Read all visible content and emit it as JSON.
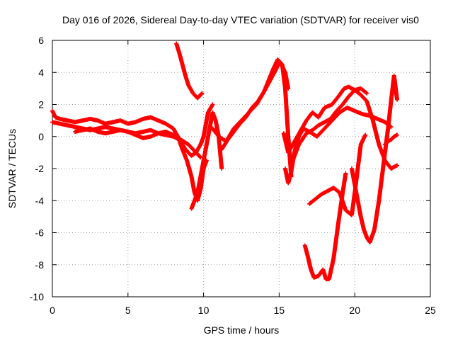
{
  "chart_data": {
    "type": "scatter",
    "title": "Day 016 of 2026, Sidereal Day-to-day VTEC variation (SDTVAR) for receiver vis0",
    "xlabel": "GPS time / hours",
    "ylabel": "SDTVAR / TECUs",
    "xlim": [
      0,
      25
    ],
    "ylim": [
      -10,
      6
    ],
    "xticks": [
      "0",
      "5",
      "10",
      "15",
      "20",
      "25"
    ],
    "yticks": [
      "-10",
      "-8",
      "-6",
      "-4",
      "-2",
      "0",
      "2",
      "4",
      "6"
    ],
    "grid": true,
    "marker": "plus",
    "color": "#ff0000",
    "series": [
      {
        "x": [
          0.0,
          0.2,
          0.5,
          1.0,
          1.5,
          2.0,
          2.5,
          3.0,
          3.5,
          4.0,
          4.5,
          5.0,
          5.5,
          6.0,
          6.5,
          7.0,
          7.5,
          8.0,
          8.3,
          8.6,
          8.9,
          9.2,
          9.4,
          9.6,
          9.8,
          10.0,
          10.2
        ],
        "y": [
          1.6,
          1.2,
          1.1,
          1.0,
          0.9,
          1.0,
          1.1,
          1.0,
          0.8,
          0.9,
          1.0,
          0.8,
          0.9,
          1.1,
          1.2,
          1.0,
          0.8,
          0.5,
          0.0,
          -0.8,
          -1.5,
          -2.5,
          -3.5,
          -4.0,
          -3.3,
          -2.0,
          -1.5
        ]
      },
      {
        "x": [
          0.0,
          0.5,
          1.0,
          1.5,
          2.0,
          2.5,
          3.0,
          3.5,
          4.0,
          4.5,
          5.0,
          5.5,
          6.0,
          6.5,
          7.0,
          7.5,
          8.0,
          8.4,
          8.8,
          9.2,
          9.5,
          9.8,
          10.0,
          10.3,
          10.6
        ],
        "y": [
          0.9,
          0.8,
          0.7,
          0.6,
          0.5,
          0.4,
          0.5,
          0.6,
          0.5,
          0.4,
          0.3,
          0.2,
          0.3,
          0.4,
          0.2,
          0.1,
          0.0,
          -0.2,
          -0.8,
          -1.2,
          -1.0,
          -0.5,
          0.0,
          1.5,
          2.0
        ]
      },
      {
        "x": [
          1.5,
          2.0,
          2.5,
          3.0,
          3.5,
          4.0,
          4.5,
          5.0,
          5.5,
          6.0,
          6.5,
          7.0,
          7.5,
          8.0,
          8.5,
          9.0,
          9.5,
          9.8
        ],
        "y": [
          0.3,
          0.4,
          0.5,
          0.3,
          0.2,
          0.3,
          0.4,
          0.3,
          0.1,
          -0.1,
          0.0,
          0.2,
          0.3,
          0.1,
          -0.2,
          -0.5,
          -1.0,
          -1.3
        ]
      },
      {
        "x": [
          8.2,
          8.4,
          8.6,
          8.8,
          9.0,
          9.3,
          9.6,
          9.9
        ],
        "y": [
          5.8,
          5.2,
          4.5,
          3.8,
          3.2,
          2.7,
          2.4,
          2.7
        ]
      },
      {
        "x": [
          9.2,
          9.4,
          9.6,
          9.8,
          10.0,
          10.2,
          10.4,
          10.6,
          10.8,
          11.0,
          11.2
        ],
        "y": [
          -4.5,
          -4.0,
          -3.5,
          -2.5,
          -1.5,
          -0.5,
          0.5,
          1.5,
          1.0,
          0.0,
          -2.0
        ]
      },
      {
        "x": [
          10.6,
          11.0,
          11.5,
          12.0,
          12.5,
          13.0,
          13.5,
          14.0,
          14.3,
          14.6,
          14.9,
          15.2,
          15.4,
          15.6,
          15.8
        ],
        "y": [
          0.5,
          0.0,
          -0.3,
          0.5,
          1.0,
          1.5,
          2.0,
          2.8,
          3.5,
          4.2,
          4.8,
          4.5,
          3.0,
          0.0,
          -2.5
        ]
      },
      {
        "x": [
          11.2,
          11.6,
          12.0,
          12.4,
          12.8,
          13.2,
          13.6,
          14.0,
          14.4,
          14.8,
          15.0,
          15.2,
          15.4,
          15.6
        ],
        "y": [
          -0.8,
          -0.2,
          0.3,
          0.8,
          1.2,
          1.8,
          2.2,
          2.8,
          3.5,
          4.2,
          4.7,
          4.4,
          4.0,
          3.0
        ]
      },
      {
        "x": [
          15.4,
          15.6,
          15.8,
          16.0,
          16.3,
          16.6,
          17.0,
          17.5,
          18.0,
          18.5,
          19.0,
          19.5,
          20.0,
          20.5,
          21.0,
          21.5,
          22.0,
          22.4
        ],
        "y": [
          -2.0,
          -2.9,
          -2.2,
          -1.0,
          0.0,
          0.5,
          0.3,
          0.0,
          0.5,
          1.0,
          1.5,
          1.8,
          1.6,
          1.4,
          1.3,
          1.1,
          0.9,
          0.6
        ]
      },
      {
        "x": [
          15.3,
          15.6,
          15.9,
          16.2,
          16.5,
          16.8,
          17.2,
          17.6,
          18.0,
          18.5,
          19.0,
          19.3,
          19.6,
          20.0,
          20.4,
          20.8
        ],
        "y": [
          0.2,
          -1.0,
          -0.5,
          0.0,
          0.5,
          1.0,
          1.5,
          1.2,
          1.8,
          2.0,
          2.6,
          3.0,
          3.1,
          2.9,
          3.0,
          2.7
        ]
      },
      {
        "x": [
          15.9,
          16.3,
          16.8,
          17.2,
          17.6,
          18.0,
          18.4,
          18.8,
          19.2,
          19.6,
          20.0,
          20.4,
          20.8,
          21.2,
          21.6,
          22.0,
          22.4,
          22.8
        ],
        "y": [
          -1.5,
          -0.5,
          0.2,
          0.4,
          0.7,
          0.9,
          1.1,
          1.6,
          2.0,
          2.5,
          2.9,
          2.6,
          2.2,
          1.0,
          -0.5,
          -1.5,
          -2.0,
          -1.8
        ]
      },
      {
        "x": [
          16.7,
          16.9,
          17.1,
          17.3,
          17.6,
          17.9,
          18.1,
          18.3,
          18.6,
          18.9,
          19.2,
          19.4
        ],
        "y": [
          -6.8,
          -7.5,
          -8.3,
          -8.8,
          -8.7,
          -8.3,
          -8.9,
          -8.9,
          -7.6,
          -5.5,
          -3.5,
          -2.3
        ]
      },
      {
        "x": [
          17.0,
          17.4,
          17.8,
          18.2,
          18.6,
          19.0,
          19.4,
          19.8,
          20.0,
          20.2,
          20.4,
          20.7
        ],
        "y": [
          -4.2,
          -3.9,
          -3.6,
          -3.4,
          -3.2,
          -3.5,
          -4.6,
          -4.9,
          -3.5,
          -2.0,
          -0.5,
          0.1
        ]
      },
      {
        "x": [
          19.8,
          20.0,
          20.2,
          20.4,
          20.6,
          20.8,
          21.0,
          21.3,
          21.6,
          21.8,
          22.0,
          22.2,
          22.4,
          22.6,
          22.8
        ],
        "y": [
          -2.0,
          -3.0,
          -4.0,
          -5.0,
          -5.8,
          -6.3,
          -6.6,
          -5.8,
          -4.0,
          -2.5,
          -1.0,
          0.5,
          2.2,
          3.8,
          2.3
        ]
      },
      {
        "x": [
          22.0,
          22.2,
          22.4,
          22.6,
          22.8
        ],
        "y": [
          -0.5,
          -0.3,
          -0.2,
          0.0,
          0.1
        ]
      }
    ]
  }
}
